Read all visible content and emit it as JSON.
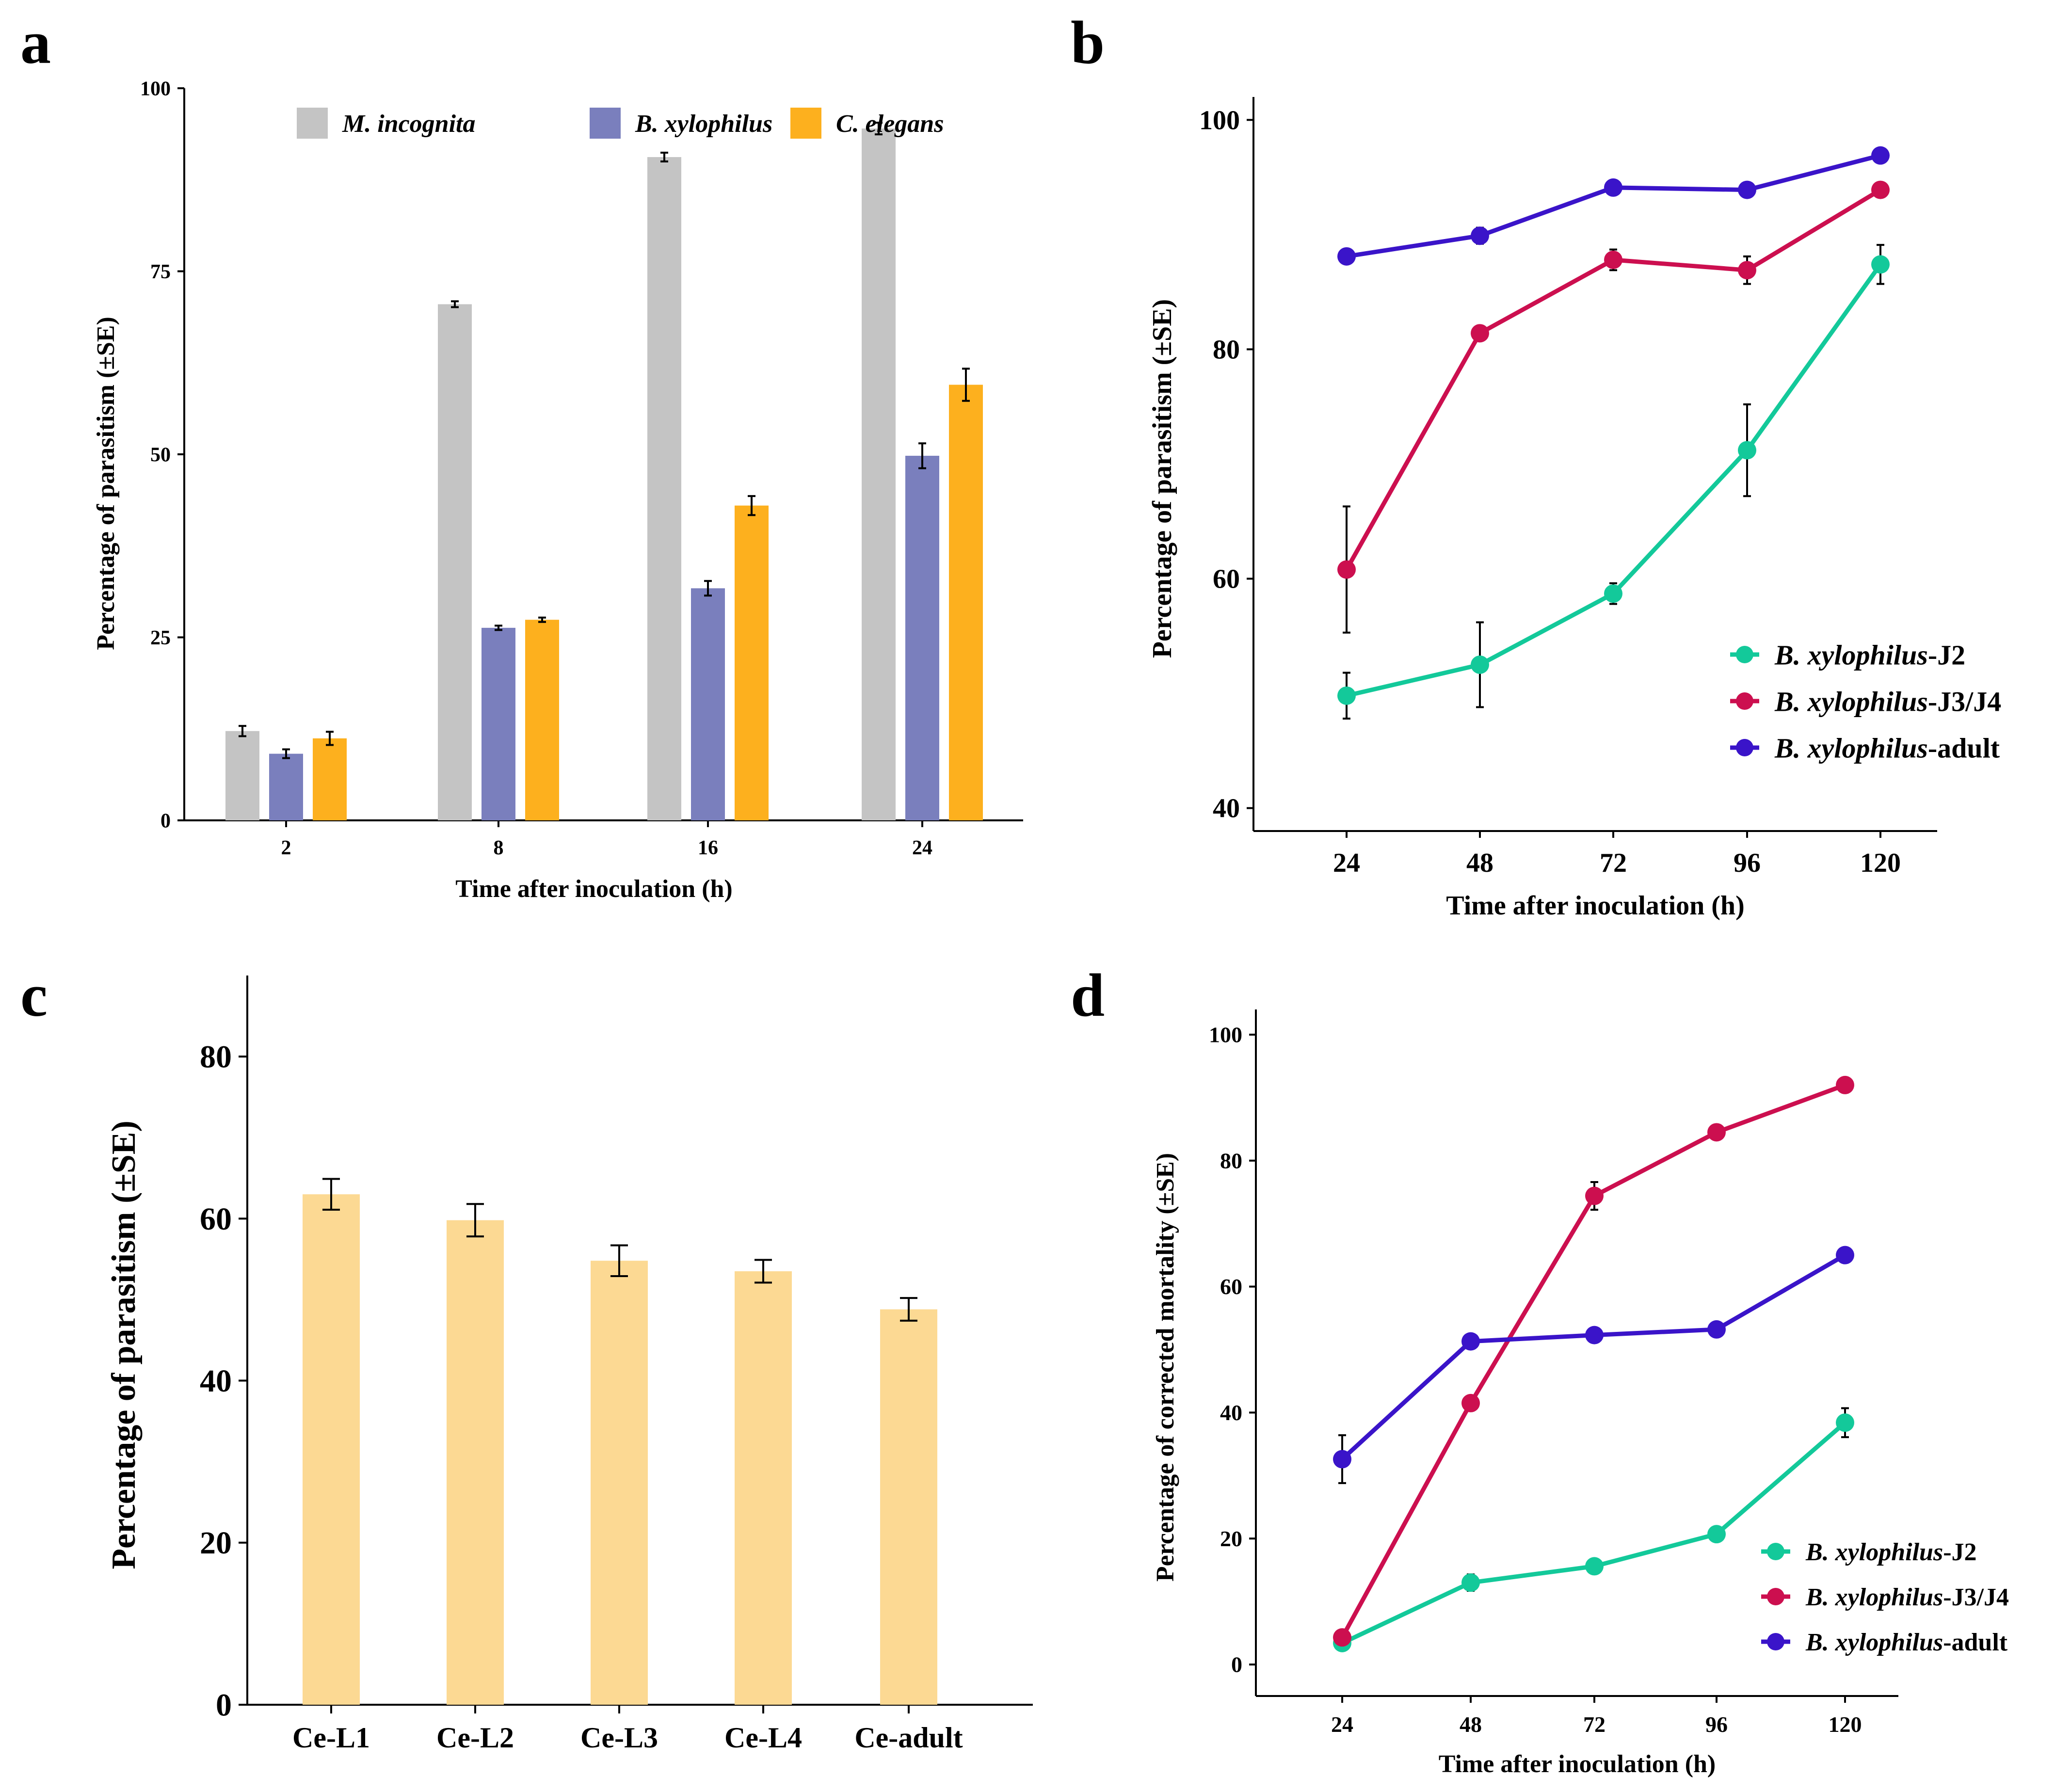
{
  "chart_data": [
    {
      "panel": "a",
      "type": "bar",
      "title": "",
      "xlabel": "Time after inoculation (h)",
      "ylabel": "Percentage of parasitism (±SE)",
      "categories": [
        "2",
        "8",
        "16",
        "24"
      ],
      "ylim": [
        0,
        100
      ],
      "yticks": [
        0,
        25,
        50,
        75,
        100
      ],
      "legend_position": "top",
      "series": [
        {
          "name": "M. incognita",
          "color": "#c4c4c4",
          "values": [
            12.2,
            70.5,
            90.6,
            94.5
          ],
          "se": [
            0.7,
            0.4,
            0.6,
            0.8
          ]
        },
        {
          "name": "B. xylophilus",
          "color": "#7a7fbd",
          "values": [
            9.1,
            26.3,
            31.7,
            49.8
          ],
          "se": [
            0.6,
            0.3,
            1.0,
            1.7
          ]
        },
        {
          "name": "C. elegans",
          "color": "#fdb01e",
          "values": [
            11.2,
            27.4,
            43.0,
            59.5
          ],
          "se": [
            0.9,
            0.3,
            1.3,
            2.2
          ]
        }
      ]
    },
    {
      "panel": "b",
      "type": "line",
      "title": "",
      "xlabel": "Time after inoculation (h)",
      "ylabel": "Percentage of parasitism (±SE)",
      "x": [
        "24",
        "48",
        "72",
        "96",
        "120"
      ],
      "ylim": [
        38,
        102
      ],
      "yticks": [
        40,
        60,
        80,
        100
      ],
      "legend_position": "bottom-right",
      "series": [
        {
          "name_italic": "B. xylophilus",
          "name_suffix": "-J2",
          "color": "#13c99a",
          "values": [
            49.8,
            52.5,
            58.7,
            71.2,
            87.4
          ],
          "se": [
            2.0,
            3.7,
            0.9,
            4.0,
            1.7
          ]
        },
        {
          "name_italic": "B. xylophilus",
          "name_suffix": "-J3/J4",
          "color": "#cc0f4f",
          "values": [
            60.8,
            81.4,
            87.8,
            86.9,
            93.9
          ],
          "se": [
            5.5,
            0.5,
            0.9,
            1.2,
            0.3
          ]
        },
        {
          "name_italic": "B. xylophilus",
          "name_suffix": "-adult",
          "color": "#3a14c9",
          "values": [
            88.1,
            89.9,
            94.1,
            93.9,
            96.9
          ],
          "se": [
            0.3,
            0.7,
            0.2,
            0.2,
            0.3
          ]
        }
      ]
    },
    {
      "panel": "c",
      "type": "bar",
      "title": "",
      "xlabel": "",
      "ylabel": "Percentage of parasitism (±SE)",
      "categories": [
        "Ce-L1",
        "Ce-L2",
        "Ce-L3",
        "Ce-L4",
        "Ce-adult"
      ],
      "ylim": [
        0,
        90
      ],
      "yticks": [
        0,
        20,
        40,
        60,
        80
      ],
      "color": "#fcd993",
      "values": [
        63.0,
        59.8,
        54.8,
        53.5,
        48.8
      ],
      "se": [
        1.9,
        2.0,
        1.9,
        1.4,
        1.4
      ]
    },
    {
      "panel": "d",
      "type": "line",
      "title": "",
      "xlabel": "Time after inoculation (h)",
      "ylabel": "Percentage of corrected mortality (±SE)",
      "x": [
        "24",
        "48",
        "72",
        "96",
        "120"
      ],
      "ylim": [
        -5,
        104
      ],
      "yticks": [
        0,
        20,
        40,
        60,
        80,
        100
      ],
      "legend_position": "bottom-right",
      "series": [
        {
          "name_italic": "B. xylophilus",
          "name_suffix": "-J2",
          "color": "#13c99a",
          "values": [
            3.4,
            13.0,
            15.6,
            20.7,
            38.4
          ],
          "se": [
            0.5,
            1.3,
            0.7,
            0.8,
            2.3
          ]
        },
        {
          "name_italic": "B. xylophilus",
          "name_suffix": "-J3/J4",
          "color": "#cc0f4f",
          "values": [
            4.3,
            41.5,
            74.4,
            84.5,
            92.0
          ],
          "se": [
            0.3,
            0.7,
            2.2,
            0.6,
            0.3
          ]
        },
        {
          "name_italic": "B. xylophilus",
          "name_suffix": "-adult",
          "color": "#3a14c9",
          "values": [
            32.6,
            51.3,
            52.3,
            53.2,
            65.0
          ],
          "se": [
            3.8,
            0.7,
            0.5,
            0.5,
            0.5
          ]
        }
      ]
    }
  ]
}
